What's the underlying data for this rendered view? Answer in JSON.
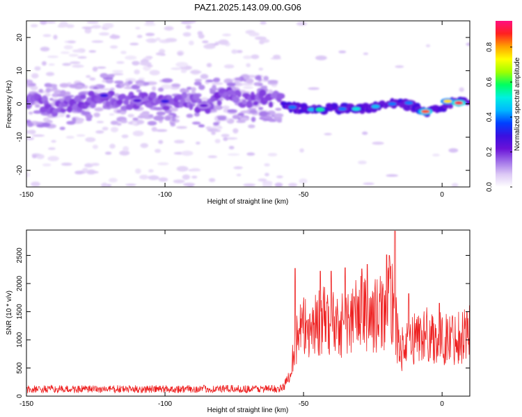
{
  "title": "PAZ1.2025.143.09.00.G06",
  "chart_data": [
    {
      "type": "heatmap",
      "xlabel": "Height of straight line (km)",
      "ylabel": "Frequency (Hz)",
      "xlim": [
        -150,
        10
      ],
      "ylim": [
        -25,
        25
      ],
      "xticks": [
        -150,
        -100,
        -50,
        0
      ],
      "yticks": [
        -20,
        -10,
        0,
        10,
        20
      ],
      "colorbar": {
        "label": "Normalized spectral amplitude",
        "range": [
          0.0,
          0.95
        ],
        "ticks": [
          0.0,
          0.2,
          0.4,
          0.6,
          0.8
        ],
        "colormap": [
          "#ffffff",
          "#dcc8f5",
          "#a070e8",
          "#6a12d8",
          "#3a10e0",
          "#0040ff",
          "#00b8ff",
          "#00f0e0",
          "#00ff60",
          "#a0ff00",
          "#ffff00",
          "#ffa000",
          "#ff2020",
          "#ff1080"
        ]
      },
      "ridge": [
        {
          "x": -148,
          "f": 0.5
        },
        {
          "x": -140,
          "f": -1.0
        },
        {
          "x": -130,
          "f": 0.8
        },
        {
          "x": -122,
          "f": 2.0
        },
        {
          "x": -115,
          "f": 0.5
        },
        {
          "x": -108,
          "f": 1.2
        },
        {
          "x": -100,
          "f": 0.5
        },
        {
          "x": -92,
          "f": 1.0
        },
        {
          "x": -85,
          "f": -0.5
        },
        {
          "x": -78,
          "f": 2.5
        },
        {
          "x": -70,
          "f": 1.2
        },
        {
          "x": -63,
          "f": 2.0
        },
        {
          "x": -58,
          "f": 0.5
        },
        {
          "x": -55,
          "f": -1.0
        },
        {
          "x": -50,
          "f": -1.5
        },
        {
          "x": -45,
          "f": -2.0
        },
        {
          "x": -40,
          "f": -1.0
        },
        {
          "x": -35,
          "f": -1.5
        },
        {
          "x": -30,
          "f": -1.5
        },
        {
          "x": -25,
          "f": -1.0
        },
        {
          "x": -20,
          "f": 0.0
        },
        {
          "x": -15,
          "f": 0.5
        },
        {
          "x": -10,
          "f": -1.0
        },
        {
          "x": -5,
          "f": -2.5
        },
        {
          "x": 0,
          "f": -1.0
        },
        {
          "x": 4,
          "f": 0.5
        },
        {
          "x": 10,
          "f": 1.0
        }
      ],
      "peaks": [
        {
          "x": -122,
          "f": 2.5,
          "a": 0.3
        },
        {
          "x": -110,
          "f": 1.0,
          "a": 0.25
        },
        {
          "x": -100,
          "f": 0.8,
          "a": 0.3
        },
        {
          "x": -86,
          "f": -0.5,
          "a": 0.22
        },
        {
          "x": -54,
          "f": -1.0,
          "a": 0.4
        },
        {
          "x": -47,
          "f": -1.7,
          "a": 0.45
        },
        {
          "x": -44,
          "f": -1.7,
          "a": 0.55
        },
        {
          "x": -36,
          "f": -1.5,
          "a": 0.4
        },
        {
          "x": -31,
          "f": -1.5,
          "a": 0.5
        },
        {
          "x": -24,
          "f": -0.8,
          "a": 0.45
        },
        {
          "x": -18,
          "f": 0.0,
          "a": 0.4
        },
        {
          "x": -12,
          "f": 0.3,
          "a": 0.4
        },
        {
          "x": -7,
          "f": -2.3,
          "a": 0.6
        },
        {
          "x": -6,
          "f": -2.3,
          "a": 0.85
        },
        {
          "x": 2,
          "f": 0.8,
          "a": 0.75
        },
        {
          "x": 6,
          "f": 0.3,
          "a": 0.9
        }
      ]
    },
    {
      "type": "line",
      "xlabel": "Height of straight line (km)",
      "ylabel": "SNR (10 * v/v)",
      "xlim": [
        -150,
        10
      ],
      "ylim": [
        0,
        2950
      ],
      "xticks": [
        -150,
        -100,
        -50,
        0
      ],
      "yticks": [
        0,
        500,
        1000,
        1500,
        2000,
        2500
      ],
      "series_color": "#ee2020",
      "envelope": [
        {
          "x": -150,
          "y": 120
        },
        {
          "x": -58,
          "y": 130
        },
        {
          "x": -56,
          "y": 250
        },
        {
          "x": -54,
          "y": 700
        },
        {
          "x": -52,
          "y": 1100
        },
        {
          "x": -50,
          "y": 1200
        },
        {
          "x": -45,
          "y": 1300
        },
        {
          "x": -40,
          "y": 1350
        },
        {
          "x": -35,
          "y": 1250
        },
        {
          "x": -30,
          "y": 1500
        },
        {
          "x": -25,
          "y": 1400
        },
        {
          "x": -20,
          "y": 1550
        },
        {
          "x": -18,
          "y": 1700
        },
        {
          "x": -16,
          "y": 1000
        },
        {
          "x": -14,
          "y": 800
        },
        {
          "x": -10,
          "y": 1050
        },
        {
          "x": -5,
          "y": 1100
        },
        {
          "x": 0,
          "y": 1000
        },
        {
          "x": 5,
          "y": 1050
        },
        {
          "x": 10,
          "y": 1150
        }
      ],
      "local_peaks": [
        {
          "x": -53,
          "y": 2270
        },
        {
          "x": -44,
          "y": 2220
        },
        {
          "x": -40,
          "y": 2220
        },
        {
          "x": -35,
          "y": 2280
        },
        {
          "x": -29,
          "y": 2260
        },
        {
          "x": -27,
          "y": 2340
        },
        {
          "x": -20,
          "y": 2510
        },
        {
          "x": -19,
          "y": 2500
        },
        {
          "x": -17,
          "y": 2930
        },
        {
          "x": -12,
          "y": 1820
        },
        {
          "x": -1,
          "y": 1650
        },
        {
          "x": 9,
          "y": 1500
        }
      ]
    }
  ]
}
